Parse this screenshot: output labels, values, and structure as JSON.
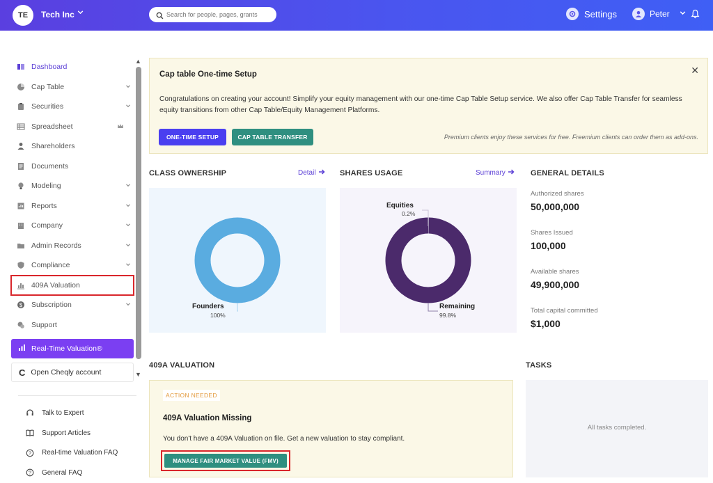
{
  "header": {
    "company_initials": "TE",
    "company_name": "Tech Inc",
    "search_placeholder": "Search for people, pages, grants",
    "settings_label": "Settings",
    "user_name": "Peter"
  },
  "sidebar": {
    "items": [
      {
        "label": "Dashboard",
        "icon": "dashboard-icon",
        "chevron": false,
        "active": true
      },
      {
        "label": "Cap Table",
        "icon": "pie-icon",
        "chevron": true
      },
      {
        "label": "Securities",
        "icon": "clipboard-icon",
        "chevron": true
      },
      {
        "label": "Spreadsheet",
        "icon": "spreadsheet-icon",
        "chevron": false,
        "crown": true
      },
      {
        "label": "Shareholders",
        "icon": "person-icon",
        "chevron": false
      },
      {
        "label": "Documents",
        "icon": "document-icon",
        "chevron": false
      },
      {
        "label": "Modeling",
        "icon": "bulb-icon",
        "chevron": true
      },
      {
        "label": "Reports",
        "icon": "reports-icon",
        "chevron": true
      },
      {
        "label": "Company",
        "icon": "building-icon",
        "chevron": true
      },
      {
        "label": "Admin Records",
        "icon": "folder-icon",
        "chevron": true
      },
      {
        "label": "Compliance",
        "icon": "shield-icon",
        "chevron": true
      },
      {
        "label": "409A Valuation",
        "icon": "chart-icon",
        "chevron": false
      },
      {
        "label": "Subscription",
        "icon": "dollar-icon",
        "chevron": true
      },
      {
        "label": "Support",
        "icon": "support-icon",
        "chevron": false
      }
    ],
    "realtime_label": "Real-Time Valuation®",
    "cheqly_label": "Open Cheqly account",
    "help": [
      {
        "label": "Talk to Expert",
        "icon": "headset-icon"
      },
      {
        "label": "Support Articles",
        "icon": "book-icon"
      },
      {
        "label": "Real-time Valuation FAQ",
        "icon": "question-icon"
      },
      {
        "label": "General FAQ",
        "icon": "question-icon"
      }
    ]
  },
  "banner": {
    "title": "Cap table One-time Setup",
    "text": "Congratulations on creating your account! Simplify your equity management with our one-time Cap Table Setup service. We also offer Cap Table Transfer for seamless equity transitions from other Cap Table/Equity Management Platforms.",
    "setup_label": "ONE-TIME SETUP",
    "transfer_label": "CAP TABLE TRANSFER",
    "note": "Premium clients enjoy these services for free. Freemium clients can order them as add-ons."
  },
  "class_ownership": {
    "title": "CLASS OWNERSHIP",
    "link": "Detail",
    "color": "#5aace0",
    "slices": [
      {
        "label": "Founders",
        "pct": "100%",
        "value": 100
      }
    ]
  },
  "shares_usage": {
    "title": "SHARES USAGE",
    "link": "Summary",
    "colors": {
      "remaining": "#4b2a6b",
      "equities": "#c9c2d6"
    },
    "slices": [
      {
        "label": "Equities",
        "pct": "0.2%",
        "value": 0.2
      },
      {
        "label": "Remaining",
        "pct": "99.8%",
        "value": 99.8
      }
    ]
  },
  "general_details": {
    "title": "GENERAL DETAILS",
    "items": [
      {
        "label": "Authorized shares",
        "value": "50,000,000"
      },
      {
        "label": "Shares Issued",
        "value": "100,000"
      },
      {
        "label": "Available shares",
        "value": "49,900,000"
      },
      {
        "label": "Total capital committed",
        "value": "$1,000"
      }
    ]
  },
  "valuation": {
    "section_title": "409A VALUATION",
    "badge": "ACTION NEEDED",
    "title": "409A Valuation Missing",
    "text": "You don't have a 409A Valuation on file. Get a new valuation to stay compliant.",
    "button": "MANAGE FAIR MARKET VALUE (FMV)"
  },
  "tasks": {
    "title": "TASKS",
    "empty_text": "All tasks completed."
  }
}
